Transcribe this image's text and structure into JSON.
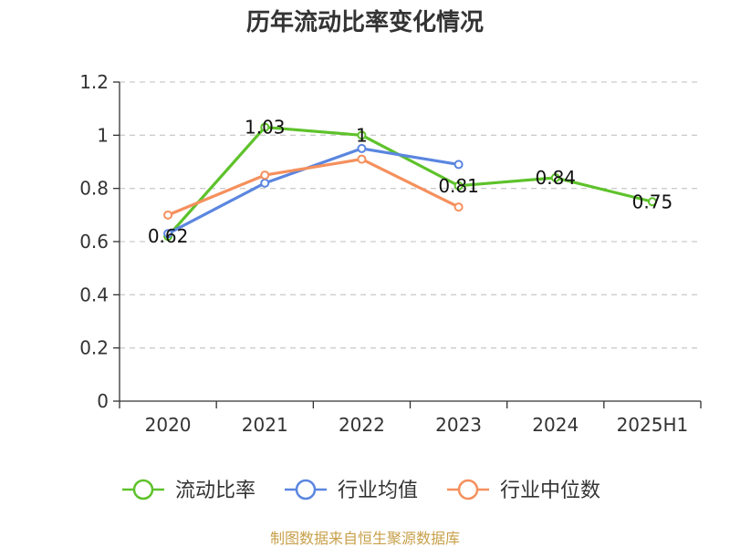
{
  "chart_data": {
    "type": "line",
    "title": "历年流动比率变化情况",
    "categories": [
      "2020",
      "2021",
      "2022",
      "2023",
      "2024",
      "2025H1"
    ],
    "ylim": [
      0,
      1.2
    ],
    "yticks": [
      "0",
      "0.2",
      "0.4",
      "0.6",
      "0.8",
      "1",
      "1.2"
    ],
    "grid": true,
    "legend_position": "bottom",
    "series": [
      {
        "name": "流动比率",
        "color": "#5ec22b",
        "values": [
          0.62,
          1.03,
          1.0,
          0.81,
          0.84,
          0.75
        ],
        "data_labels": [
          "0.62",
          "1.03",
          "1",
          "0.81",
          "0.84",
          "0.75"
        ]
      },
      {
        "name": "行业均值",
        "color": "#5b86e0",
        "values": [
          0.63,
          0.82,
          0.95,
          0.89,
          null,
          null
        ]
      },
      {
        "name": "行业中位数",
        "color": "#f5905d",
        "values": [
          0.7,
          0.85,
          0.91,
          0.73,
          null,
          null
        ]
      }
    ],
    "source": "制图数据来自恒生聚源数据库",
    "source_color": "#c8a04a"
  }
}
